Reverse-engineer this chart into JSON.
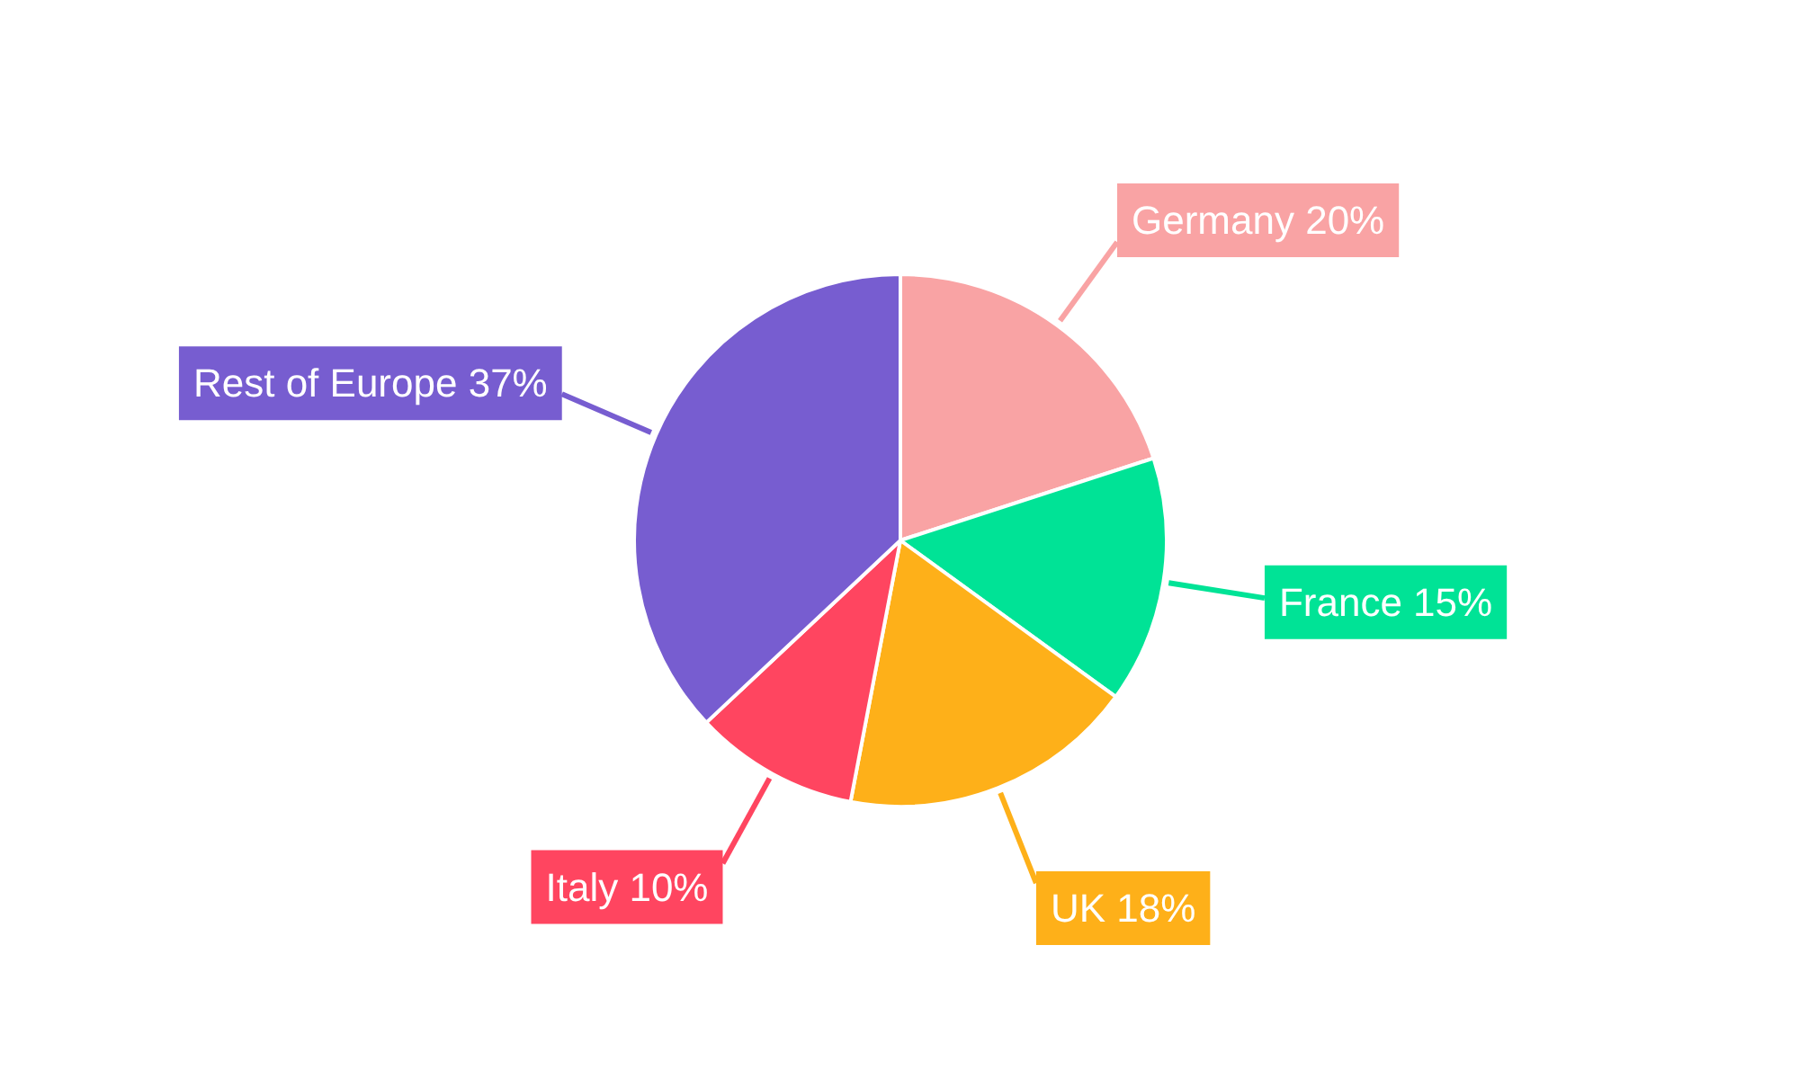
{
  "chart_data": {
    "type": "pie",
    "categories": [
      "Germany",
      "France",
      "UK",
      "Italy",
      "Rest of Europe"
    ],
    "values": [
      20,
      15,
      18,
      10,
      37
    ],
    "colors": [
      "#f9a3a4",
      "#00e396",
      "#feb019",
      "#ff4560",
      "#775dd0"
    ],
    "value_labels": [
      "20%",
      "15%",
      "18%",
      "10%",
      "37%"
    ]
  }
}
